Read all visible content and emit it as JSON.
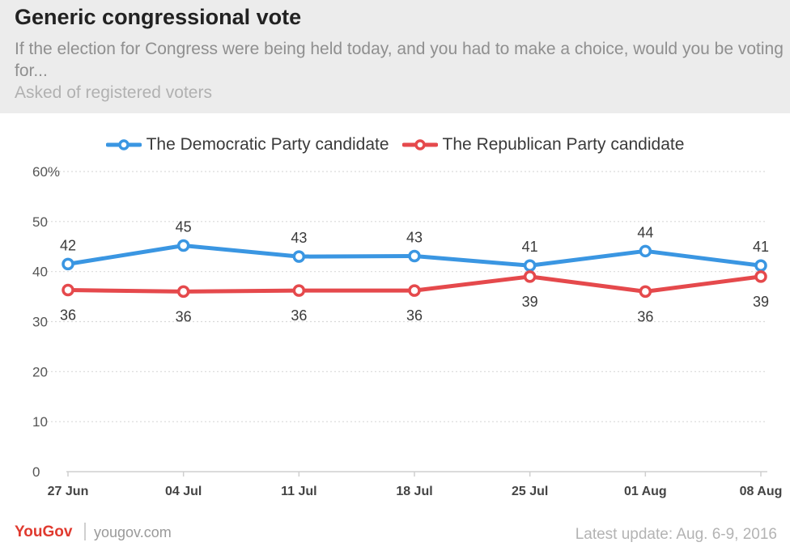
{
  "header": {
    "title": "Generic congressional vote",
    "subtitle": "If the election for Congress were being held today, and you had to make a choice, would you be voting for...",
    "note": "Asked of registered voters"
  },
  "footer": {
    "brand": "YouGov",
    "url": "yougov.com",
    "update": "Latest update: Aug. 6-9, 2016"
  },
  "colors": {
    "democratic": "#3a96e2",
    "republican": "#e5494c",
    "grid": "#d9d9d9",
    "axis_text": "#555555"
  },
  "chart_data": {
    "type": "line",
    "categories": [
      "27 Jun",
      "04 Jul",
      "11 Jul",
      "18 Jul",
      "25 Jul",
      "01 Aug",
      "08 Aug"
    ],
    "series": [
      {
        "name": "The Democratic Party candidate",
        "values": [
          42,
          45,
          43,
          43,
          41,
          44,
          41
        ],
        "data_labels": [
          "42",
          "45",
          "43",
          "43",
          "41",
          "44",
          "41"
        ]
      },
      {
        "name": "The Republican Party candidate",
        "values": [
          36,
          36,
          36,
          36,
          39,
          36,
          39
        ],
        "data_labels": [
          "36",
          "36",
          "36",
          "36",
          "39",
          "36",
          "39"
        ]
      }
    ],
    "plotted_values": {
      "democratic": [
        41.5,
        45.2,
        43.0,
        43.1,
        41.2,
        44.1,
        41.2
      ],
      "republican": [
        36.3,
        36.0,
        36.2,
        36.2,
        39.0,
        36.0,
        39.0
      ]
    },
    "y_ticks": [
      "0",
      "10",
      "20",
      "30",
      "40",
      "50",
      "60%"
    ],
    "ylim": [
      0,
      60
    ],
    "grid": true,
    "legend_position": "top-center"
  }
}
